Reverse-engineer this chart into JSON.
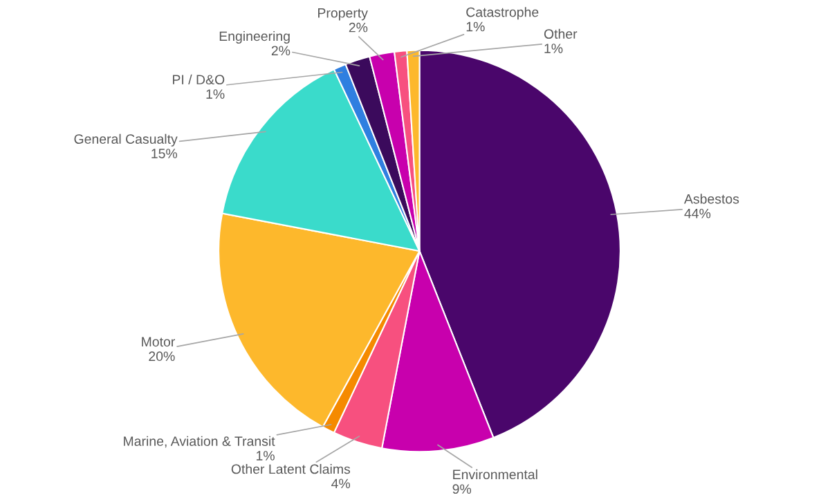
{
  "chart_data": {
    "type": "pie",
    "categories": [
      "Asbestos",
      "Environmental",
      "Other Latent Claims",
      "Marine, Aviation & Transit",
      "Motor",
      "General Casualty",
      "PI / D&O",
      "Engineering",
      "Property",
      "Catastrophe",
      "Other"
    ],
    "values": [
      44,
      9,
      4,
      1,
      20,
      15,
      1,
      2,
      2,
      1,
      1
    ],
    "colors": [
      "#4a066b",
      "#c800ad",
      "#f7507f",
      "#f58a00",
      "#fdb82c",
      "#3adbcb",
      "#2f7fe0",
      "#3b0a5c",
      "#c800ad",
      "#f7507f",
      "#fdb82c"
    ],
    "value_labels": [
      "44%",
      "9%",
      "4%",
      "1%",
      "20%",
      "15%",
      "1%",
      "2%",
      "2%",
      "1%",
      "1%"
    ],
    "legend": false
  }
}
